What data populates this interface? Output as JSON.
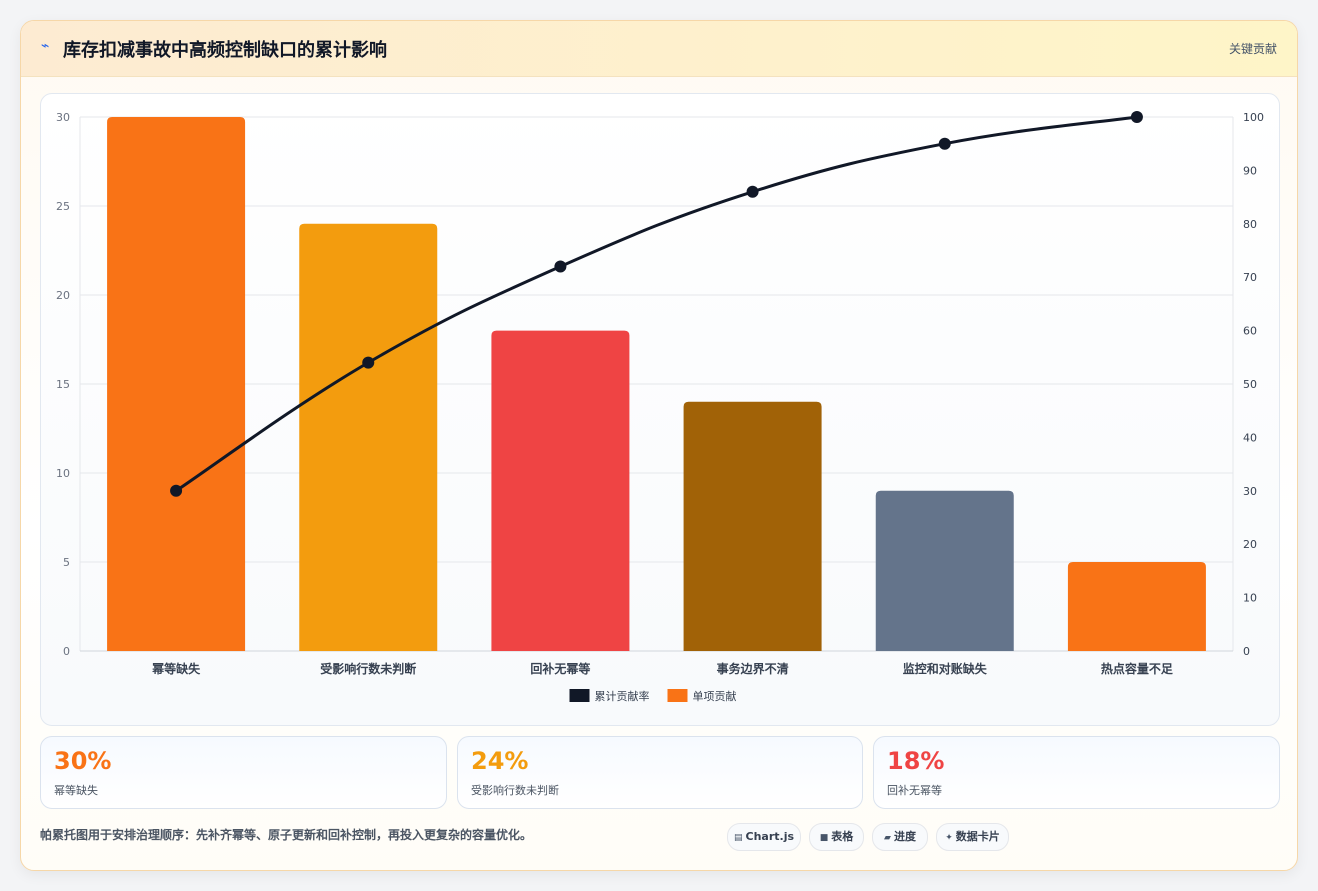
{
  "header": {
    "title": "库存扣减事故中高频控制缺口的累计影响",
    "right_label": "关键贡献"
  },
  "chart_data": {
    "type": "bar",
    "categories": [
      "幂等缺失",
      "受影响行数未判断",
      "回补无幂等",
      "事务边界不清",
      "监控和对账缺失",
      "热点容量不足"
    ],
    "series": [
      {
        "name": "单项贡献",
        "type": "bar",
        "axis": "left",
        "values": [
          30,
          24,
          18,
          14,
          9,
          5
        ],
        "colors": [
          "#f97316",
          "#f39c0e",
          "#ef4444",
          "#a16207",
          "#64748b",
          "#f97316"
        ]
      },
      {
        "name": "累计贡献率",
        "type": "line",
        "axis": "right",
        "values": [
          30,
          54,
          72,
          86,
          95,
          100
        ],
        "color": "#111827"
      }
    ],
    "y_left": {
      "range": [
        0,
        30
      ],
      "ticks": [
        0,
        5,
        10,
        15,
        20,
        25,
        30
      ]
    },
    "y_right": {
      "range": [
        0,
        100
      ],
      "ticks": [
        0,
        10,
        20,
        30,
        40,
        50,
        60,
        70,
        80,
        90,
        100
      ]
    },
    "legend": {
      "placement": "bottom",
      "order": [
        "累计贡献率",
        "单项贡献"
      ]
    },
    "grid": true
  },
  "stats": [
    {
      "value": "30%",
      "label": "幂等缺失",
      "color": "#f97316"
    },
    {
      "value": "24%",
      "label": "受影响行数未判断",
      "color": "#f39c0e"
    },
    {
      "value": "18%",
      "label": "回补无幂等",
      "color": "#ef4444"
    }
  ],
  "footnote": "帕累托图用于安排治理顺序：先补齐幂等、原子更新和回补控制，再投入更复杂的容量优化。",
  "pills": [
    {
      "icon": "chart-icon",
      "glyph": "▤",
      "label": "Chart.js"
    },
    {
      "icon": "table-icon",
      "glyph": "■",
      "label": "表格"
    },
    {
      "icon": "progress-icon",
      "glyph": "▰",
      "label": "进度"
    },
    {
      "icon": "card-icon",
      "glyph": "✦",
      "label": "数据卡片"
    }
  ]
}
